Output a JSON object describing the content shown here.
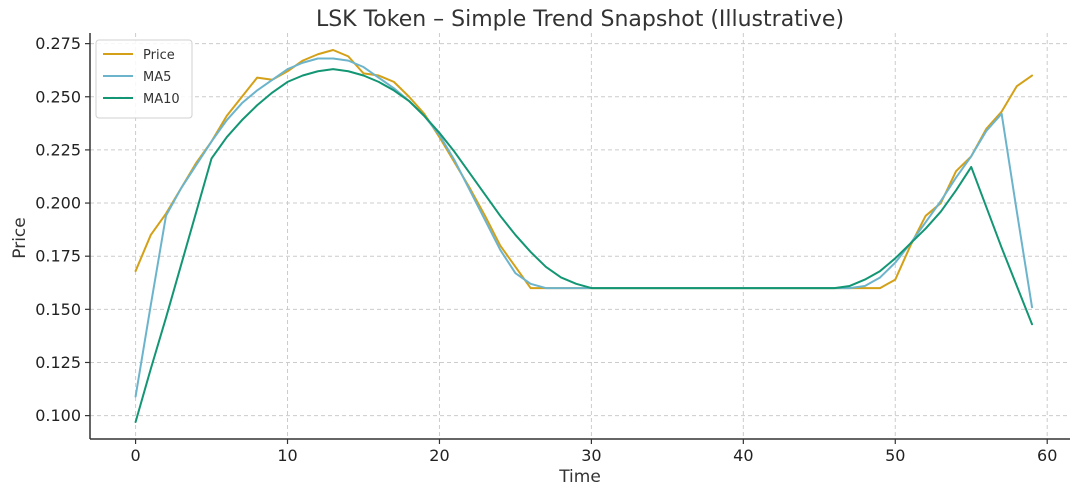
{
  "chart_data": {
    "type": "line",
    "title": "LSK Token – Simple Trend Snapshot (Illustrative)",
    "xlabel": "Time",
    "ylabel": "Price",
    "xlim": [
      -3,
      61.5
    ],
    "ylim": [
      0.089,
      0.28
    ],
    "xticks": [
      0,
      10,
      20,
      30,
      40,
      50,
      60
    ],
    "yticks": [
      0.1,
      0.125,
      0.15,
      0.175,
      0.2,
      0.225,
      0.25,
      0.275
    ],
    "grid": true,
    "legend_position": "top-left",
    "x": [
      0,
      1,
      2,
      3,
      4,
      5,
      6,
      7,
      8,
      9,
      10,
      11,
      12,
      13,
      14,
      15,
      16,
      17,
      18,
      19,
      20,
      21,
      22,
      23,
      24,
      25,
      26,
      27,
      28,
      29,
      30,
      31,
      32,
      33,
      34,
      35,
      36,
      37,
      38,
      39,
      40,
      41,
      42,
      43,
      44,
      45,
      46,
      47,
      48,
      49,
      50,
      51,
      52,
      53,
      54,
      55,
      56,
      57,
      58,
      59
    ],
    "series": [
      {
        "name": "Price",
        "color": "#d4a017",
        "values": [
          0.168,
          0.185,
          0.195,
          0.207,
          0.219,
          0.229,
          0.241,
          0.25,
          0.259,
          0.258,
          0.262,
          0.267,
          0.27,
          0.272,
          0.269,
          0.261,
          0.26,
          0.257,
          0.25,
          0.242,
          0.231,
          0.219,
          0.207,
          0.194,
          0.18,
          0.17,
          0.16,
          0.16,
          0.16,
          0.16,
          0.16,
          0.16,
          0.16,
          0.16,
          0.16,
          0.16,
          0.16,
          0.16,
          0.16,
          0.16,
          0.16,
          0.16,
          0.16,
          0.16,
          0.16,
          0.16,
          0.16,
          0.16,
          0.16,
          0.16,
          0.164,
          0.18,
          0.194,
          0.2,
          0.215,
          0.222,
          0.235,
          0.243,
          0.255,
          0.26
        ]
      },
      {
        "name": "MA5",
        "color": "#6cb4cc",
        "values": [
          0.109,
          0.152,
          0.194,
          0.207,
          0.218,
          0.229,
          0.239,
          0.247,
          0.253,
          0.258,
          0.263,
          0.266,
          0.268,
          0.268,
          0.267,
          0.264,
          0.259,
          0.254,
          0.248,
          0.241,
          0.232,
          0.22,
          0.206,
          0.192,
          0.178,
          0.167,
          0.162,
          0.16,
          0.16,
          0.16,
          0.16,
          0.16,
          0.16,
          0.16,
          0.16,
          0.16,
          0.16,
          0.16,
          0.16,
          0.16,
          0.16,
          0.16,
          0.16,
          0.16,
          0.16,
          0.16,
          0.16,
          0.16,
          0.161,
          0.165,
          0.172,
          0.181,
          0.191,
          0.201,
          0.212,
          0.222,
          0.234,
          0.242,
          0.196,
          0.151
        ]
      },
      {
        "name": "MA10",
        "color": "#139673",
        "values": [
          0.097,
          0.122,
          0.146,
          0.171,
          0.196,
          0.221,
          0.231,
          0.239,
          0.246,
          0.252,
          0.257,
          0.26,
          0.262,
          0.263,
          0.262,
          0.26,
          0.257,
          0.253,
          0.248,
          0.241,
          0.233,
          0.224,
          0.214,
          0.204,
          0.194,
          0.185,
          0.177,
          0.17,
          0.165,
          0.162,
          0.16,
          0.16,
          0.16,
          0.16,
          0.16,
          0.16,
          0.16,
          0.16,
          0.16,
          0.16,
          0.16,
          0.16,
          0.16,
          0.16,
          0.16,
          0.16,
          0.16,
          0.161,
          0.164,
          0.168,
          0.174,
          0.181,
          0.188,
          0.196,
          0.206,
          0.217,
          0.198,
          0.179,
          0.161,
          0.143
        ]
      }
    ]
  }
}
